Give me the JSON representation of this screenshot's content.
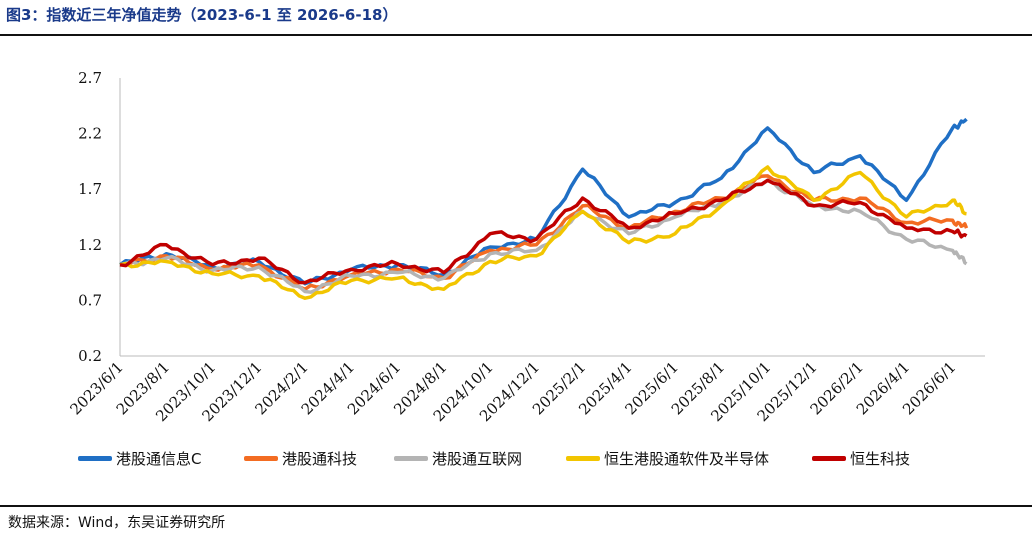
{
  "figure": {
    "title": "图3：指数近三年净值走势（2023-6-1 至 2026-6-18）",
    "source": "数据来源：Wind，东吴证券研究所"
  },
  "chart_data": {
    "type": "line",
    "title": "图3：指数近三年净值走势（2023-6-1 至 2026-6-18）",
    "xlabel": "",
    "ylabel": "",
    "ylim": [
      0.2,
      2.7
    ],
    "yticks": [
      "0.2",
      "0.7",
      "1.2",
      "1.7",
      "2.2",
      "2.7"
    ],
    "xticks": [
      "2023/6/1",
      "2023/8/1",
      "2023/10/1",
      "2023/12/1",
      "2024/2/1",
      "2024/4/1",
      "2024/6/1",
      "2024/8/1",
      "2024/10/1",
      "2024/12/1",
      "2025/2/1",
      "2025/4/1",
      "2025/6/1",
      "2025/8/1",
      "2025/10/1",
      "2025/12/1",
      "2026/2/1",
      "2026/4/1",
      "2026/6/1"
    ],
    "grid": false,
    "legend_position": "bottom",
    "x": [
      "2023/6/1",
      "2023/8/1",
      "2023/10/1",
      "2023/12/1",
      "2024/2/1",
      "2024/4/1",
      "2024/6/1",
      "2024/8/1",
      "2024/10/1",
      "2024/12/1",
      "2025/2/1",
      "2025/4/1",
      "2025/6/1",
      "2025/8/1",
      "2025/10/1",
      "2025/12/1",
      "2026/2/1",
      "2026/4/1",
      "2026/6/1",
      "2026/6/18"
    ],
    "series": [
      {
        "name": "港股通信息C",
        "color": "#1f6fc5",
        "values": [
          1.02,
          1.12,
          1.0,
          1.05,
          0.85,
          0.98,
          1.02,
          0.93,
          1.18,
          1.25,
          1.88,
          1.45,
          1.58,
          1.8,
          2.25,
          1.85,
          2.0,
          1.6,
          2.25,
          2.33
        ]
      },
      {
        "name": "港股通科技",
        "color": "#f36c22",
        "values": [
          1.02,
          1.1,
          0.98,
          1.02,
          0.8,
          0.93,
          0.98,
          0.9,
          1.15,
          1.2,
          1.55,
          1.35,
          1.5,
          1.62,
          1.82,
          1.6,
          1.62,
          1.4,
          1.42,
          1.35
        ]
      },
      {
        "name": "港股通互联网",
        "color": "#b4b4b4",
        "values": [
          1.02,
          1.08,
          0.97,
          1.0,
          0.78,
          0.92,
          0.95,
          0.9,
          1.12,
          1.15,
          1.5,
          1.3,
          1.45,
          1.58,
          1.78,
          1.55,
          1.5,
          1.25,
          1.15,
          1.03
        ]
      },
      {
        "name": "恒生港股通软件及半导体",
        "color": "#f2c500",
        "values": [
          1.02,
          1.05,
          0.94,
          0.92,
          0.72,
          0.88,
          0.9,
          0.8,
          1.05,
          1.1,
          1.5,
          1.22,
          1.3,
          1.55,
          1.9,
          1.6,
          1.85,
          1.45,
          1.6,
          1.48
        ]
      },
      {
        "name": "恒生科技",
        "color": "#c00000",
        "values": [
          1.02,
          1.2,
          1.02,
          1.08,
          0.86,
          0.98,
          1.03,
          0.95,
          1.3,
          1.25,
          1.62,
          1.35,
          1.48,
          1.6,
          1.78,
          1.55,
          1.58,
          1.35,
          1.32,
          1.28
        ]
      }
    ]
  }
}
